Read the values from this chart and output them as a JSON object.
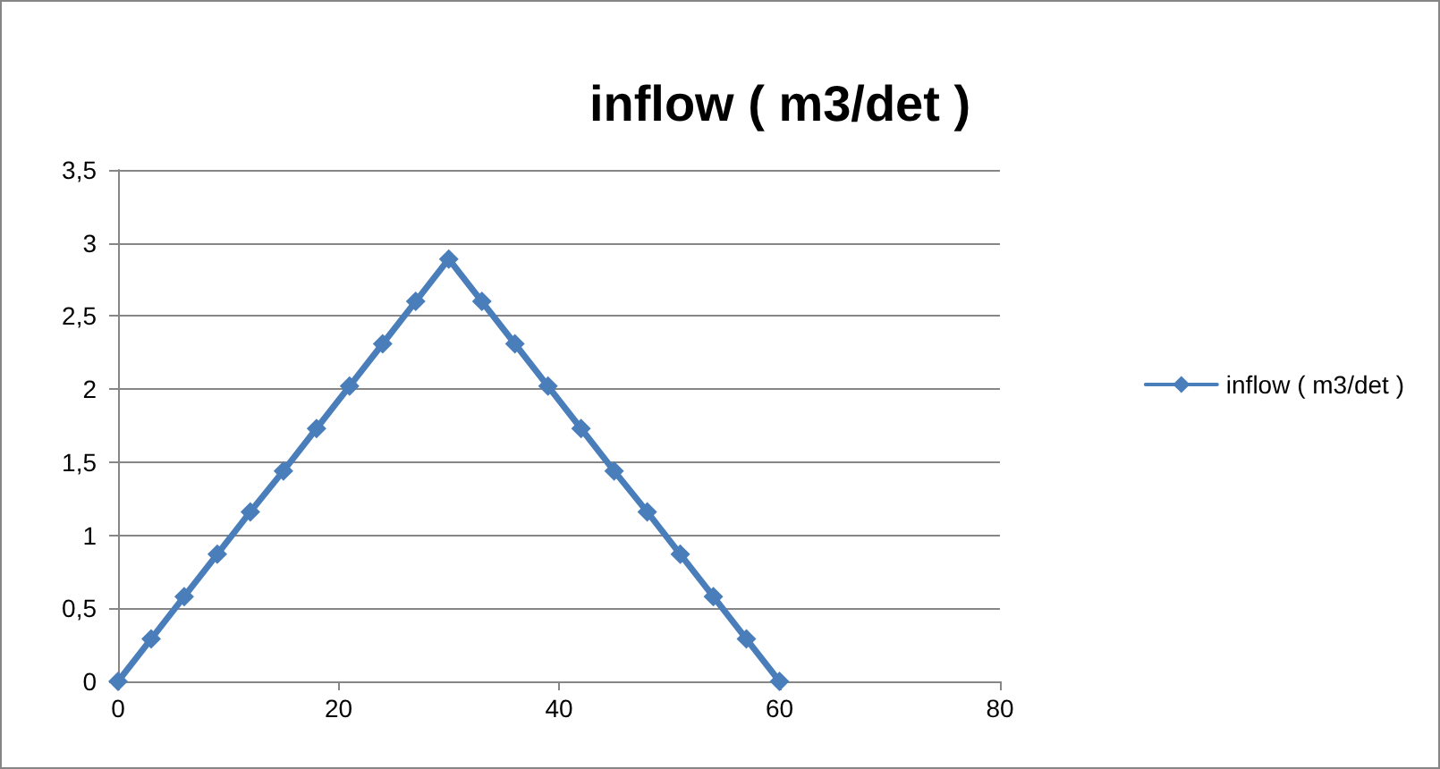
{
  "chart_data": {
    "type": "line",
    "title": "inflow ( m3/det )",
    "x": [
      0,
      3,
      6,
      9,
      12,
      15,
      18,
      21,
      24,
      27,
      30,
      33,
      36,
      39,
      42,
      45,
      48,
      51,
      54,
      57,
      60
    ],
    "series": [
      {
        "name": "inflow ( m3/det )",
        "color": "#4a7ebb",
        "values": [
          0,
          0.29,
          0.58,
          0.87,
          1.16,
          1.44,
          1.73,
          2.02,
          2.31,
          2.6,
          2.89,
          2.6,
          2.31,
          2.02,
          1.73,
          1.44,
          1.16,
          0.87,
          0.58,
          0.29,
          0
        ]
      }
    ],
    "xlim": [
      0,
      80
    ],
    "xticks": [
      0,
      20,
      40,
      60,
      80
    ],
    "ylim": [
      0,
      3.5
    ],
    "yticks": [
      0,
      {
        "value": 0.5,
        "label": "0,5"
      },
      1,
      {
        "value": 1.5,
        "label": "1,5"
      },
      2,
      {
        "value": 2.5,
        "label": "2,5"
      },
      3,
      {
        "value": 3.5,
        "label": "3,5"
      }
    ],
    "grid": "y",
    "legend": "right",
    "marker": "diamond",
    "line_style": "solid"
  }
}
